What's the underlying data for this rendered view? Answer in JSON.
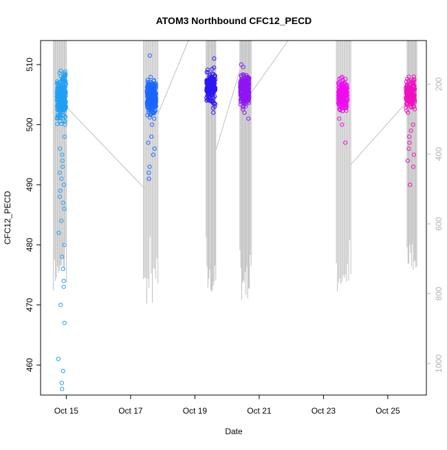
{
  "chart_data": {
    "type": "scatter",
    "title": "ATOM3 Northbound CFC12_PECD",
    "xlabel": "Date",
    "ylabel": "CFC12_PECD",
    "x_ticks": [
      "Oct 15",
      "Oct 17",
      "Oct 19",
      "Oct 21",
      "Oct 23",
      "Oct 25"
    ],
    "y_ticks": [
      "460",
      "470",
      "480",
      "490",
      "500",
      "510"
    ],
    "y2_ticks": [
      "200",
      "400",
      "600",
      "800",
      "1000"
    ],
    "xlim_days": [
      14.2,
      26.2
    ],
    "ylim": [
      455,
      514
    ],
    "y2lim": [
      1090,
      75
    ],
    "grid": false,
    "colors": {
      "axis": "#000000",
      "right_axis": "#b3b3b3",
      "altitude_line": "#bebebe"
    },
    "series": [
      {
        "x_day": 14.85,
        "y_center": 504.5,
        "y_spread": 1.6,
        "outliers": [
          456,
          457,
          459,
          461,
          467,
          470,
          473,
          474,
          476,
          478,
          480,
          482,
          484,
          486,
          487,
          488,
          489,
          490,
          491,
          492,
          493,
          494,
          495,
          496,
          498,
          500
        ],
        "color": "#1f9ff5",
        "count": 260
      },
      {
        "x_day": 17.65,
        "y_center": 504.6,
        "y_spread": 1.3,
        "outliers": [
          491,
          492,
          493,
          495,
          496,
          497,
          498,
          500,
          501,
          502,
          511.5
        ],
        "color": "#1a66ff",
        "count": 260
      },
      {
        "x_day": 19.5,
        "y_center": 506.3,
        "y_spread": 1.3,
        "outliers": [
          502,
          503,
          509.5,
          511
        ],
        "color": "#2d16f4",
        "count": 150
      },
      {
        "x_day": 20.55,
        "y_center": 505.7,
        "y_spread": 1.3,
        "outliers": [
          501,
          502,
          510
        ],
        "color": "#8e16f3",
        "count": 240
      },
      {
        "x_day": 23.6,
        "y_center": 504.8,
        "y_spread": 1.2,
        "outliers": [
          497,
          500,
          501
        ],
        "color": "#ef0af0",
        "count": 220
      },
      {
        "x_day": 25.7,
        "y_center": 505.2,
        "y_spread": 1.2,
        "outliers": [
          490,
          493,
          494,
          495,
          496,
          497,
          498,
          499,
          500,
          502,
          508
        ],
        "color": "#ef10c0",
        "count": 180
      }
    ],
    "altitude_clusters": [
      {
        "x_start": 14.6,
        "x_end": 15.0,
        "min_alt": 790,
        "lines": 14
      },
      {
        "x_start": 17.4,
        "x_end": 17.85,
        "min_alt": 840,
        "lines": 14
      },
      {
        "x_start": 19.35,
        "x_end": 19.65,
        "min_alt": 825,
        "lines": 12
      },
      {
        "x_start": 20.4,
        "x_end": 20.75,
        "min_alt": 825,
        "lines": 14
      },
      {
        "x_start": 23.4,
        "x_end": 23.85,
        "min_alt": 810,
        "lines": 14
      },
      {
        "x_start": 25.6,
        "x_end": 25.9,
        "min_alt": 750,
        "lines": 12
      }
    ],
    "altitude_transits": [
      [
        [
          15.0,
          265
        ],
        [
          17.45,
          500
        ]
      ],
      [
        [
          17.85,
          285
        ],
        [
          18.8,
          75
        ]
      ],
      [
        [
          19.65,
          390
        ],
        [
          20.4,
          160
        ]
      ],
      [
        [
          20.75,
          225
        ],
        [
          21.9,
          75
        ]
      ],
      [
        [
          23.85,
          430
        ],
        [
          25.6,
          250
        ]
      ]
    ]
  }
}
